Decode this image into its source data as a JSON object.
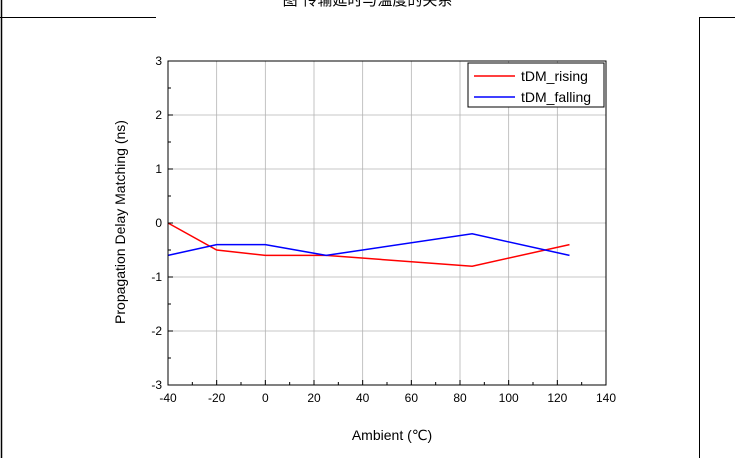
{
  "caption": "图 传输延时与温度的关系",
  "chart_data": {
    "type": "line",
    "title": "",
    "xlabel": "Ambient (℃)",
    "ylabel": "Propagation Delay Matching (ns)",
    "xlim": [
      -40,
      140
    ],
    "ylim": [
      -3,
      3
    ],
    "xticks": [
      -40,
      -20,
      0,
      20,
      40,
      60,
      80,
      100,
      120,
      140
    ],
    "yticks": [
      -3,
      -2,
      -1,
      0,
      1,
      2,
      3
    ],
    "grid": true,
    "legend": "top-right",
    "series": [
      {
        "name": "tDM_rising",
        "color": "#ff0000",
        "x": [
          -40,
          -20,
          0,
          25,
          85,
          125
        ],
        "y": [
          0.0,
          -0.5,
          -0.6,
          -0.6,
          -0.8,
          -0.4
        ]
      },
      {
        "name": "tDM_falling",
        "color": "#0000ff",
        "x": [
          -40,
          -20,
          0,
          25,
          85,
          125
        ],
        "y": [
          -0.6,
          -0.4,
          -0.4,
          -0.6,
          -0.2,
          -0.6
        ]
      }
    ]
  }
}
